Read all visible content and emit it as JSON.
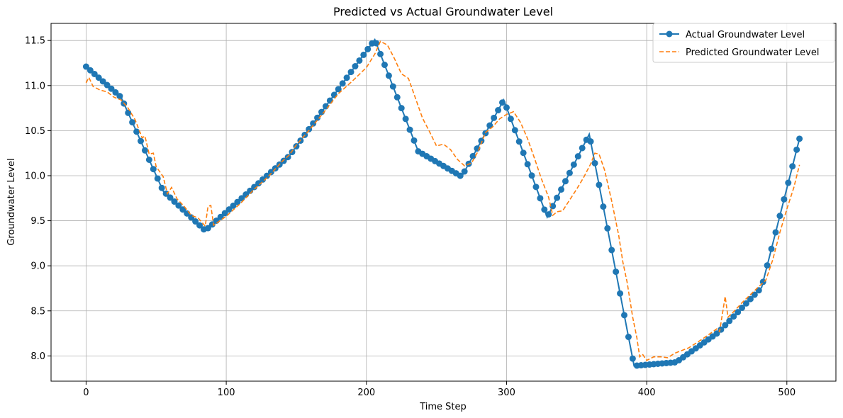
{
  "chart_data": {
    "type": "line",
    "title": "Predicted vs Actual Groundwater Level",
    "xlabel": "Time Step",
    "ylabel": "Groundwater Level",
    "xlim": [
      -25,
      535
    ],
    "ylim": [
      7.72,
      11.69
    ],
    "xticks": [
      0,
      100,
      200,
      300,
      400,
      500
    ],
    "yticks": [
      8.0,
      8.5,
      9.0,
      9.5,
      10.0,
      10.5,
      11.0,
      11.5
    ],
    "grid": true,
    "legend_position": "top-right",
    "series": [
      {
        "name": "Actual Groundwater Level",
        "color": "#1f77b4",
        "style": "solid",
        "marker": "circle",
        "keypoints": [
          [
            0,
            11.21
          ],
          [
            25,
            10.87
          ],
          [
            55,
            9.83
          ],
          [
            85,
            9.39
          ],
          [
            145,
            10.22
          ],
          [
            206,
            11.51
          ],
          [
            237,
            10.27
          ],
          [
            268,
            9.99
          ],
          [
            298,
            10.84
          ],
          [
            329,
            9.54
          ],
          [
            359,
            10.46
          ],
          [
            391,
            7.89
          ],
          [
            421,
            7.93
          ],
          [
            451,
            8.26
          ],
          [
            482,
            8.76
          ],
          [
            509,
            10.41
          ]
        ]
      },
      {
        "name": "Predicted Groundwater Level",
        "color": "#ff7f0e",
        "style": "dashed",
        "marker": "none",
        "points": [
          [
            0,
            11.03
          ],
          [
            2,
            11.09
          ],
          [
            5,
            10.99
          ],
          [
            10,
            10.95
          ],
          [
            15,
            10.93
          ],
          [
            20,
            10.87
          ],
          [
            25,
            10.84
          ],
          [
            30,
            10.75
          ],
          [
            35,
            10.62
          ],
          [
            40,
            10.42
          ],
          [
            42,
            10.44
          ],
          [
            45,
            10.24
          ],
          [
            48,
            10.25
          ],
          [
            50,
            10.1
          ],
          [
            55,
            9.99
          ],
          [
            58,
            9.8
          ],
          [
            61,
            9.87
          ],
          [
            65,
            9.74
          ],
          [
            70,
            9.66
          ],
          [
            75,
            9.56
          ],
          [
            80,
            9.53
          ],
          [
            85,
            9.44
          ],
          [
            87,
            9.66
          ],
          [
            89,
            9.67
          ],
          [
            91,
            9.45
          ],
          [
            100,
            9.55
          ],
          [
            110,
            9.69
          ],
          [
            120,
            9.85
          ],
          [
            130,
            9.99
          ],
          [
            140,
            10.16
          ],
          [
            145,
            10.23
          ],
          [
            150,
            10.34
          ],
          [
            160,
            10.52
          ],
          [
            170,
            10.71
          ],
          [
            180,
            10.91
          ],
          [
            185,
            10.98
          ],
          [
            190,
            11.05
          ],
          [
            200,
            11.2
          ],
          [
            206,
            11.35
          ],
          [
            210,
            11.49
          ],
          [
            215,
            11.45
          ],
          [
            220,
            11.3
          ],
          [
            225,
            11.13
          ],
          [
            230,
            11.08
          ],
          [
            235,
            10.86
          ],
          [
            240,
            10.64
          ],
          [
            245,
            10.49
          ],
          [
            250,
            10.33
          ],
          [
            255,
            10.35
          ],
          [
            260,
            10.29
          ],
          [
            265,
            10.18
          ],
          [
            270,
            10.11
          ],
          [
            275,
            10.14
          ],
          [
            280,
            10.28
          ],
          [
            285,
            10.48
          ],
          [
            290,
            10.54
          ],
          [
            295,
            10.63
          ],
          [
            300,
            10.68
          ],
          [
            305,
            10.71
          ],
          [
            310,
            10.59
          ],
          [
            315,
            10.41
          ],
          [
            320,
            10.19
          ],
          [
            325,
            9.96
          ],
          [
            330,
            9.76
          ],
          [
            333,
            9.56
          ],
          [
            336,
            9.6
          ],
          [
            340,
            9.61
          ],
          [
            345,
            9.73
          ],
          [
            350,
            9.85
          ],
          [
            355,
            9.98
          ],
          [
            360,
            10.13
          ],
          [
            363,
            10.25
          ],
          [
            366,
            10.24
          ],
          [
            370,
            10.06
          ],
          [
            375,
            9.72
          ],
          [
            380,
            9.34
          ],
          [
            383,
            9.04
          ],
          [
            386,
            8.82
          ],
          [
            390,
            8.43
          ],
          [
            393,
            8.2
          ],
          [
            395,
            7.99
          ],
          [
            397,
            8.02
          ],
          [
            400,
            7.95
          ],
          [
            405,
            7.99
          ],
          [
            410,
            7.99
          ],
          [
            415,
            7.98
          ],
          [
            420,
            8.03
          ],
          [
            430,
            8.09
          ],
          [
            440,
            8.19
          ],
          [
            450,
            8.3
          ],
          [
            452,
            8.27
          ],
          [
            456,
            8.66
          ],
          [
            458,
            8.43
          ],
          [
            462,
            8.49
          ],
          [
            468,
            8.59
          ],
          [
            474,
            8.68
          ],
          [
            480,
            8.77
          ],
          [
            485,
            8.84
          ],
          [
            490,
            9.07
          ],
          [
            495,
            9.37
          ],
          [
            500,
            9.63
          ],
          [
            505,
            9.87
          ],
          [
            509,
            10.12
          ]
        ]
      }
    ]
  }
}
